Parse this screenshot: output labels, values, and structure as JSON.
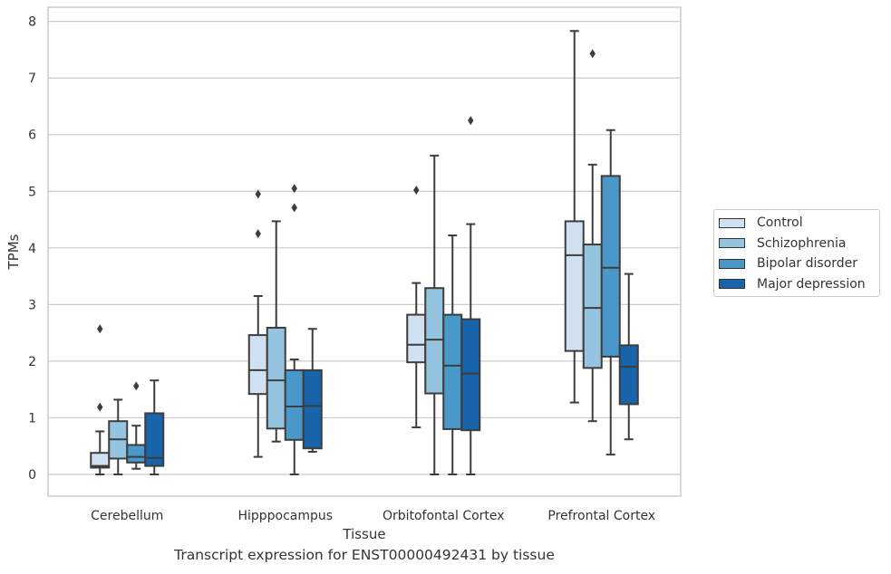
{
  "chart_data": {
    "type": "box",
    "title": "",
    "caption": "Transcript expression for ENST00000492431 by tissue",
    "xlabel": "Tissue",
    "ylabel": "TPMs",
    "ylim": [
      -0.38,
      8.22
    ],
    "yticks": [
      "0",
      "1",
      "2",
      "3",
      "4",
      "5",
      "6",
      "7",
      "8"
    ],
    "grid": "horizontal",
    "legend_position": "right",
    "categories": [
      "Cerebellum",
      "Hipppocampus",
      "Orbitofontal Cortex",
      "Prefrontal Cortex"
    ],
    "series": [
      {
        "name": "Control",
        "color": "#d0e1f2",
        "boxes": [
          {
            "whislo": 0.0,
            "q1": 0.12,
            "med": 0.15,
            "q3": 0.38,
            "whishi": 0.76,
            "fliers": [
              1.19,
              2.57
            ]
          },
          {
            "whislo": 0.31,
            "q1": 1.42,
            "med": 1.84,
            "q3": 2.46,
            "whishi": 3.15,
            "fliers": [
              4.25,
              4.95
            ]
          },
          {
            "whislo": 0.83,
            "q1": 1.98,
            "med": 2.29,
            "q3": 2.82,
            "whishi": 3.38,
            "fliers": [
              5.02
            ]
          },
          {
            "whislo": 1.27,
            "q1": 2.18,
            "med": 3.87,
            "q3": 4.47,
            "whishi": 7.83,
            "fliers": []
          }
        ]
      },
      {
        "name": "Schizophrenia",
        "color": "#94c4df",
        "boxes": [
          {
            "whislo": 0.0,
            "q1": 0.28,
            "med": 0.62,
            "q3": 0.94,
            "whishi": 1.32,
            "fliers": []
          },
          {
            "whislo": 0.58,
            "q1": 0.81,
            "med": 1.66,
            "q3": 2.59,
            "whishi": 4.47,
            "fliers": []
          },
          {
            "whislo": 0.0,
            "q1": 1.43,
            "med": 2.38,
            "q3": 3.29,
            "whishi": 5.63,
            "fliers": []
          },
          {
            "whislo": 0.94,
            "q1": 1.88,
            "med": 2.94,
            "q3": 4.06,
            "whishi": 5.47,
            "fliers": [
              7.43
            ]
          }
        ]
      },
      {
        "name": "Bipolar disorder",
        "color": "#4a98c9",
        "boxes": [
          {
            "whislo": 0.1,
            "q1": 0.21,
            "med": 0.31,
            "q3": 0.52,
            "whishi": 0.86,
            "fliers": [
              1.56
            ]
          },
          {
            "whislo": 0.0,
            "q1": 0.61,
            "med": 1.2,
            "q3": 1.84,
            "whishi": 2.03,
            "fliers": [
              4.71,
              5.05
            ]
          },
          {
            "whislo": 0.0,
            "q1": 0.8,
            "med": 1.92,
            "q3": 2.82,
            "whishi": 4.22,
            "fliers": []
          },
          {
            "whislo": 0.35,
            "q1": 2.08,
            "med": 3.65,
            "q3": 5.27,
            "whishi": 6.08,
            "fliers": []
          }
        ]
      },
      {
        "name": "Major depression",
        "color": "#1764ab",
        "boxes": [
          {
            "whislo": 0.0,
            "q1": 0.15,
            "med": 0.29,
            "q3": 1.08,
            "whishi": 1.66,
            "fliers": []
          },
          {
            "whislo": 0.4,
            "q1": 0.46,
            "med": 1.21,
            "q3": 1.84,
            "whishi": 2.57,
            "fliers": []
          },
          {
            "whislo": 0.0,
            "q1": 0.78,
            "med": 1.78,
            "q3": 2.74,
            "whishi": 4.42,
            "fliers": [
              6.25
            ]
          },
          {
            "whislo": 0.62,
            "q1": 1.24,
            "med": 1.9,
            "q3": 2.28,
            "whishi": 3.54,
            "fliers": []
          }
        ]
      }
    ]
  },
  "colors": {
    "grid": "#cccccc",
    "frame": "#cccccc",
    "stroke": "#3d3d3d",
    "text": "#333333"
  }
}
